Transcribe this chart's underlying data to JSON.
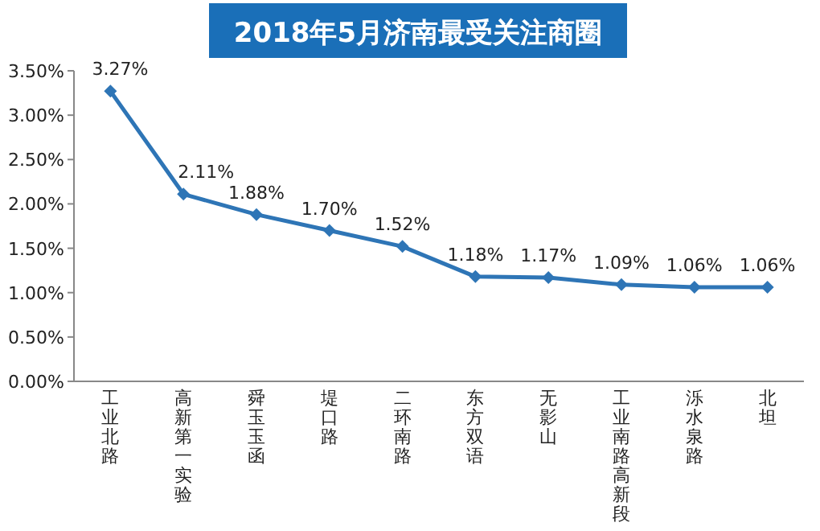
{
  "chart_data": {
    "type": "line",
    "title": "2018年5月济南最受关注商圈",
    "categories": [
      "工业北路",
      "高新第一实验",
      "舜玉玉函",
      "堤口路",
      "二环南路",
      "东方双语",
      "无影山",
      "工业南路高新段",
      "泺水泉路",
      "北坦"
    ],
    "series": [
      {
        "color": "#2e75b6",
        "values": [
          3.27,
          2.11,
          1.88,
          1.7,
          1.52,
          1.18,
          1.17,
          1.09,
          1.06,
          1.06
        ],
        "value_labels": [
          "3.27%",
          "2.11%",
          "1.88%",
          "1.70%",
          "1.52%",
          "1.18%",
          "1.17%",
          "1.09%",
          "1.06%",
          "1.06%"
        ]
      }
    ],
    "ylim": [
      0,
      3.5
    ],
    "yticks": [
      {
        "value": 0,
        "label": "0.00%"
      },
      {
        "value": 0.5,
        "label": "0.50%"
      },
      {
        "value": 1,
        "label": "1.00%"
      },
      {
        "value": 1.5,
        "label": "1.50%"
      },
      {
        "value": 2,
        "label": "2.00%"
      },
      {
        "value": 2.5,
        "label": "2.50%"
      },
      {
        "value": 3,
        "label": "3.00%"
      },
      {
        "value": 3.5,
        "label": "3.50%"
      }
    ],
    "marker": "diamond",
    "line_style": "solid"
  }
}
